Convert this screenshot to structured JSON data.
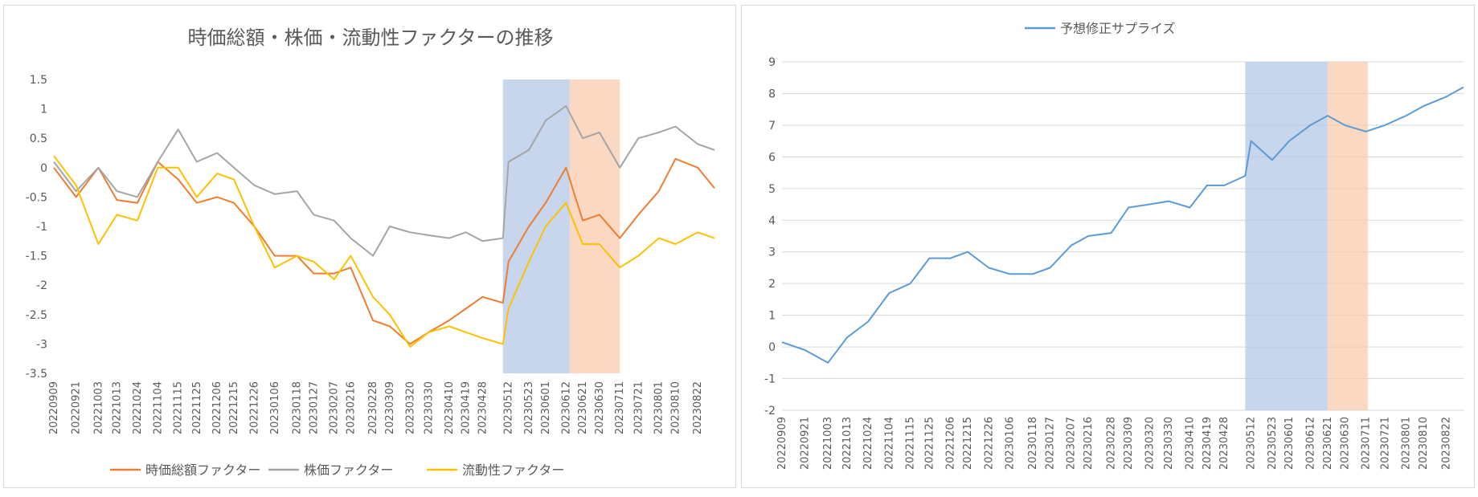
{
  "chart_data": [
    {
      "type": "line",
      "title": "時価総額・株価・流動性ファクターの推移",
      "xlabel": "",
      "ylabel": "",
      "ylim": [
        -3.5,
        1.5
      ],
      "yticks": [
        1.5,
        1,
        0.5,
        0,
        -0.5,
        -1,
        -1.5,
        -2,
        -2.5,
        -3,
        -3.5
      ],
      "grid": false,
      "legend_position": "bottom",
      "x_tick_labels": [
        "20220909",
        "20220921",
        "20221003",
        "20221013",
        "20221024",
        "20221104",
        "20221115",
        "20221125",
        "20221206",
        "20221215",
        "20221226",
        "20230106",
        "20230118",
        "20230127",
        "20230207",
        "20230216",
        "20230228",
        "20230309",
        "20230320",
        "20230330",
        "20230410",
        "20230419",
        "20230428",
        "20230512",
        "20230523",
        "20230601",
        "20230612",
        "20230621",
        "20230630",
        "20230711",
        "20230721",
        "20230801",
        "20230810",
        "20230822"
      ],
      "shaded_ranges": [
        {
          "from": "20230509",
          "to": "20230614",
          "color": "#b4c7e7"
        },
        {
          "from": "20230614",
          "to": "20230711",
          "color": "#f8cbad"
        }
      ],
      "series": [
        {
          "name": "時価総額ファクター",
          "color": "#ed7d31",
          "x": [
            "20220909",
            "20220921",
            "20221003",
            "20221013",
            "20221024",
            "20221104",
            "20221115",
            "20221125",
            "20221206",
            "20221215",
            "20221226",
            "20230106",
            "20230118",
            "20230127",
            "20230207",
            "20230216",
            "20230228",
            "20230309",
            "20230320",
            "20230330",
            "20230410",
            "20230419",
            "20230428",
            "20230509",
            "20230512",
            "20230523",
            "20230601",
            "20230612",
            "20230621",
            "20230630",
            "20230711",
            "20230721",
            "20230801",
            "20230810",
            "20230822",
            "20230831"
          ],
          "values": [
            0.0,
            -0.5,
            0.0,
            -0.55,
            -0.6,
            0.1,
            -0.2,
            -0.6,
            -0.5,
            -0.6,
            -1.0,
            -1.5,
            -1.5,
            -1.8,
            -1.8,
            -1.7,
            -2.6,
            -2.7,
            -3.0,
            -2.8,
            -2.6,
            -2.4,
            -2.2,
            -2.3,
            -1.6,
            -1.0,
            -0.6,
            0.0,
            -0.9,
            -0.8,
            -1.2,
            -0.8,
            -0.4,
            0.15,
            0.0,
            -0.35
          ]
        },
        {
          "name": "株価ファクター",
          "color": "#a5a5a5",
          "x": [
            "20220909",
            "20220921",
            "20221003",
            "20221013",
            "20221024",
            "20221104",
            "20221115",
            "20221125",
            "20221206",
            "20221215",
            "20221226",
            "20230106",
            "20230118",
            "20230127",
            "20230207",
            "20230216",
            "20230228",
            "20230309",
            "20230320",
            "20230330",
            "20230410",
            "20230419",
            "20230428",
            "20230509",
            "20230512",
            "20230523",
            "20230601",
            "20230612",
            "20230621",
            "20230630",
            "20230711",
            "20230721",
            "20230801",
            "20230810",
            "20230822",
            "20230831"
          ],
          "values": [
            0.1,
            -0.4,
            0.0,
            -0.4,
            -0.5,
            0.1,
            0.65,
            0.1,
            0.25,
            0.0,
            -0.3,
            -0.45,
            -0.4,
            -0.8,
            -0.9,
            -1.2,
            -1.5,
            -1.0,
            -1.1,
            -1.15,
            -1.2,
            -1.1,
            -1.25,
            -1.2,
            0.1,
            0.3,
            0.8,
            1.05,
            0.5,
            0.6,
            0.0,
            0.5,
            0.6,
            0.7,
            0.4,
            0.3
          ]
        },
        {
          "name": "流動性ファクター",
          "color": "#ffc000",
          "x": [
            "20220909",
            "20220921",
            "20221003",
            "20221013",
            "20221024",
            "20221104",
            "20221115",
            "20221125",
            "20221206",
            "20221215",
            "20221226",
            "20230106",
            "20230118",
            "20230127",
            "20230207",
            "20230216",
            "20230228",
            "20230309",
            "20230320",
            "20230330",
            "20230410",
            "20230419",
            "20230428",
            "20230509",
            "20230512",
            "20230523",
            "20230601",
            "20230612",
            "20230621",
            "20230630",
            "20230711",
            "20230721",
            "20230801",
            "20230810",
            "20230822",
            "20230831"
          ],
          "values": [
            0.2,
            -0.3,
            -1.3,
            -0.8,
            -0.9,
            0.0,
            0.0,
            -0.5,
            -0.1,
            -0.2,
            -1.0,
            -1.7,
            -1.5,
            -1.6,
            -1.9,
            -1.5,
            -2.2,
            -2.5,
            -3.05,
            -2.8,
            -2.7,
            -2.8,
            -2.9,
            -3.0,
            -2.4,
            -1.6,
            -1.0,
            -0.6,
            -1.3,
            -1.3,
            -1.7,
            -1.5,
            -1.2,
            -1.3,
            -1.1,
            -1.2
          ]
        }
      ]
    },
    {
      "type": "line",
      "title": "",
      "xlabel": "",
      "ylabel": "",
      "ylim": [
        -2,
        9
      ],
      "yticks": [
        9,
        8,
        7,
        6,
        5,
        4,
        3,
        2,
        1,
        0,
        -1,
        -2
      ],
      "grid": true,
      "legend_position": "top",
      "x_tick_labels": [
        "20220909",
        "20220921",
        "20221003",
        "20221013",
        "20221024",
        "20221104",
        "20221115",
        "20221125",
        "20221206",
        "20221215",
        "20221226",
        "20230106",
        "20230118",
        "20230127",
        "20230207",
        "20230216",
        "20230228",
        "20230309",
        "20230320",
        "20230330",
        "20230410",
        "20230419",
        "20230428",
        "20230512",
        "20230523",
        "20230601",
        "20230612",
        "20230621",
        "20230630",
        "20230711",
        "20230721",
        "20230801",
        "20230810",
        "20230822"
      ],
      "shaded_ranges": [
        {
          "from": "20230509",
          "to": "20230621",
          "color": "#b4c7e7"
        },
        {
          "from": "20230621",
          "to": "20230712",
          "color": "#f8cbad"
        }
      ],
      "series": [
        {
          "name": "予想修正サプライズ",
          "color": "#5b9bd5",
          "x": [
            "20220909",
            "20220921",
            "20221003",
            "20221013",
            "20221024",
            "20221104",
            "20221115",
            "20221125",
            "20221206",
            "20221215",
            "20221226",
            "20230106",
            "20230118",
            "20230127",
            "20230207",
            "20230216",
            "20230228",
            "20230309",
            "20230320",
            "20230330",
            "20230410",
            "20230419",
            "20230428",
            "20230509",
            "20230512",
            "20230523",
            "20230601",
            "20230612",
            "20230621",
            "20230630",
            "20230711",
            "20230721",
            "20230801",
            "20230810",
            "20230822",
            "20230831"
          ],
          "values": [
            0.15,
            -0.1,
            -0.5,
            0.3,
            0.8,
            1.7,
            2.0,
            2.8,
            2.8,
            3.0,
            2.5,
            2.3,
            2.3,
            2.5,
            3.2,
            3.5,
            3.6,
            4.4,
            4.5,
            4.6,
            4.4,
            5.1,
            5.1,
            5.4,
            6.5,
            5.9,
            6.5,
            7.0,
            7.3,
            7.0,
            6.8,
            7.0,
            7.3,
            7.6,
            7.9,
            8.2
          ]
        }
      ]
    }
  ]
}
